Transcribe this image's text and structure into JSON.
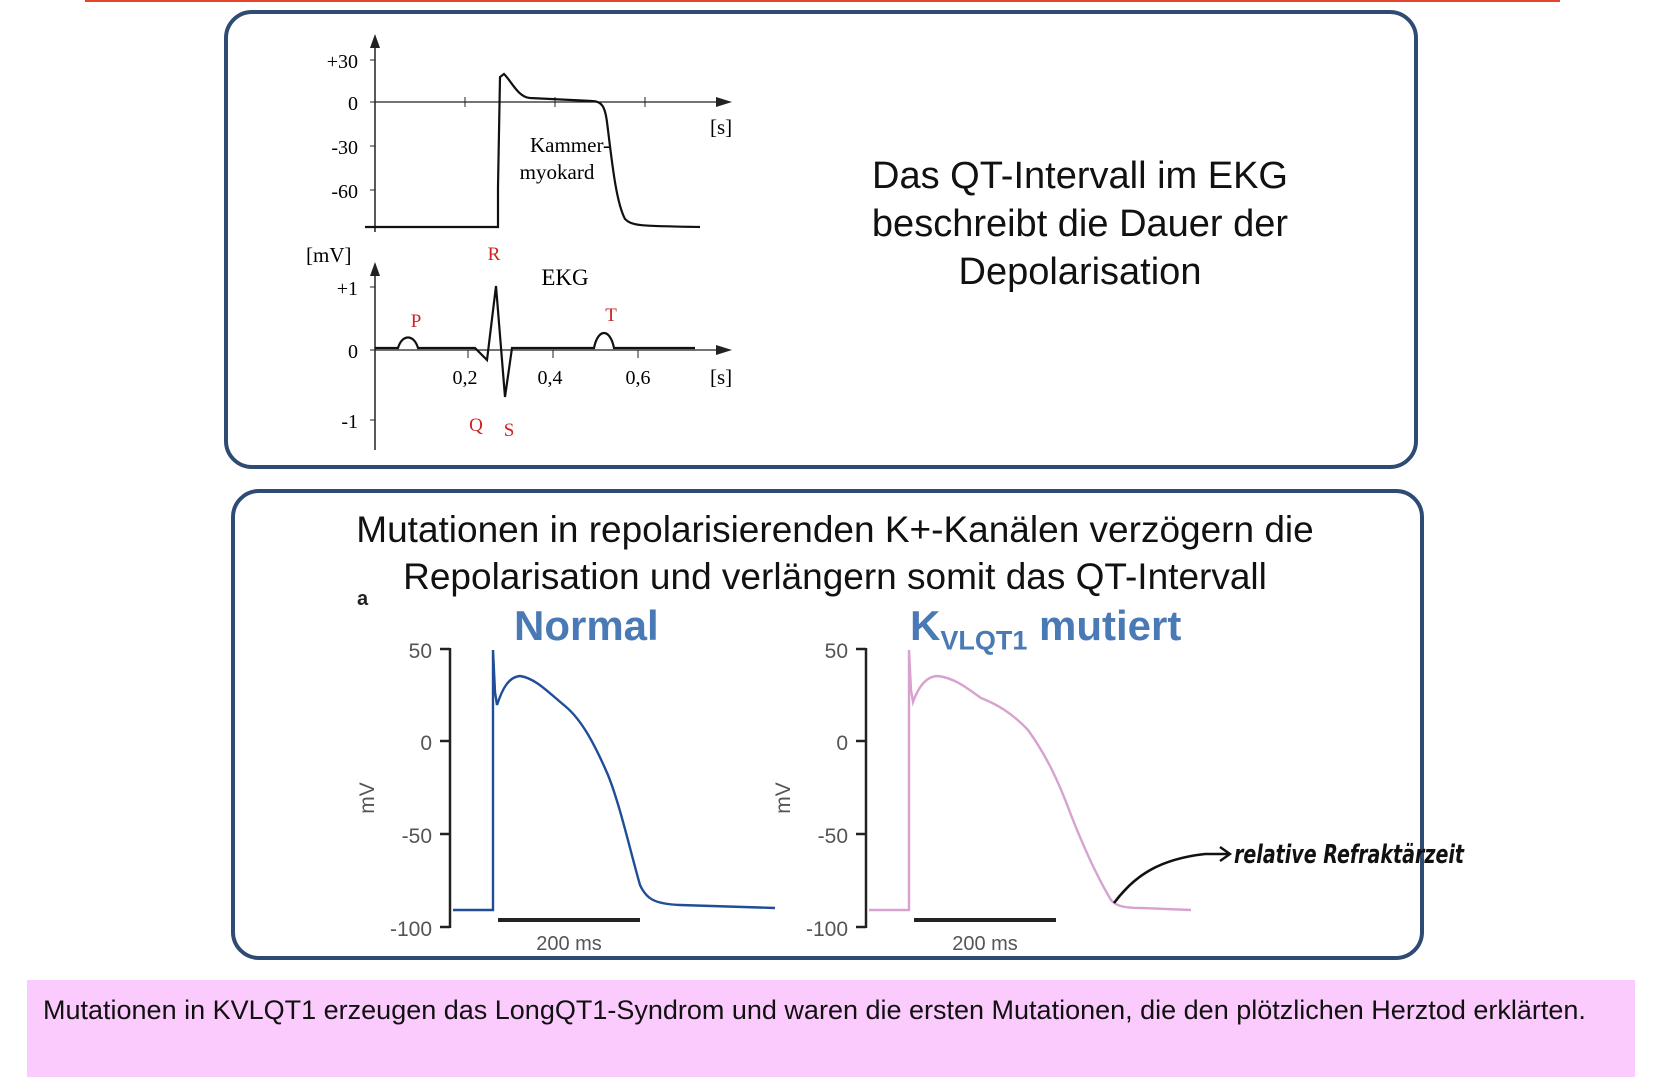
{
  "colors": {
    "box_border": "#2f4a73",
    "accent_red": "#cc2222",
    "normal_trace": "#1f4e96",
    "mutant_trace": "#d8a2cf",
    "title_blue": "#4a7ab5",
    "note_bg": "#fccbfd",
    "top_rule": "#e2452a"
  },
  "figure_top": {
    "ap_yticks": [
      "+30",
      "0",
      "-30",
      "-60"
    ],
    "ap_unit_x": "[s]",
    "ap_label_line1": "Kammer-",
    "ap_label_line2": "myokard",
    "ekg_unit_y": "[mV]",
    "ekg_yticks": [
      "+1",
      "0",
      "-1"
    ],
    "ekg_title": "EKG",
    "ekg_xticks": [
      "0,2",
      "0,4",
      "0,6"
    ],
    "ekg_unit_x": "[s]",
    "waves": {
      "P": "P",
      "Q": "Q",
      "R": "R",
      "S": "S",
      "T": "T"
    }
  },
  "statement": {
    "line1": "Das QT-Intervall im EKG",
    "line2": "beschreibt die Dauer der",
    "line3": "Depolarisation"
  },
  "mutation": {
    "line1": "Mutationen in repolarisierenden K+-Kanälen verzögern die",
    "line2": "Repolarisation und verlängern somit das QT-Intervall"
  },
  "panels": {
    "figure_letter": "a",
    "normal": {
      "title": "Normal",
      "yticks": [
        "50",
        "0",
        "-50",
        "-100"
      ],
      "ylabel": "mV",
      "scalebar": "200 ms"
    },
    "mutant": {
      "title_main": "K",
      "title_sub": "VLQT1",
      "title_rest": " mutiert",
      "yticks": [
        "50",
        "0",
        "-50",
        "-100"
      ],
      "ylabel": "mV",
      "scalebar": "200 ms"
    }
  },
  "annotation": "relative Refraktärzeit",
  "note": {
    "text": "Mutationen in KVLQT1 erzeugen das LongQT1-Syndrom und waren die ersten Mutationen, die den plötzlichen Herztod erklärten."
  }
}
